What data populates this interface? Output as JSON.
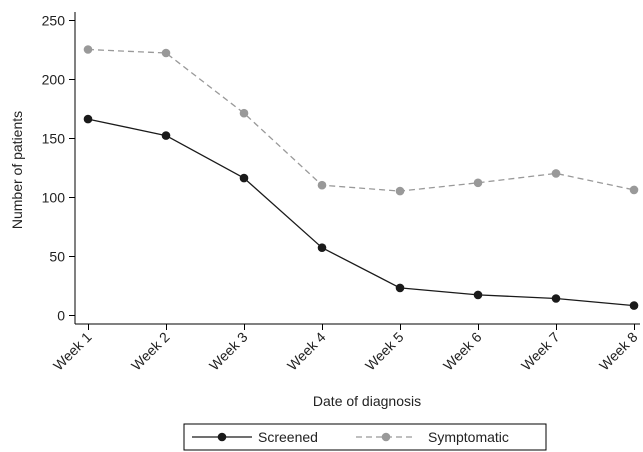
{
  "chart_data": {
    "type": "line",
    "title": "",
    "xlabel": "Date of diagnosis",
    "ylabel": "Number of patients",
    "categories": [
      "Week 1",
      "Week 2",
      "Week 3",
      "Week 4",
      "Week 5",
      "Week 6",
      "Week 7",
      "Week 8"
    ],
    "ylim": [
      0,
      250
    ],
    "yticks": [
      0,
      50,
      100,
      150,
      200,
      250
    ],
    "grid": false,
    "legend_position": "bottom",
    "series": [
      {
        "name": "Screened",
        "values": [
          166,
          152,
          116,
          57,
          23,
          17,
          14,
          8
        ],
        "color": "#1a1a1a",
        "line_style": "solid"
      },
      {
        "name": "Symptomatic",
        "values": [
          225,
          222,
          171,
          110,
          105,
          112,
          120,
          106
        ],
        "color": "#999999",
        "line_style": "dashed"
      }
    ]
  }
}
